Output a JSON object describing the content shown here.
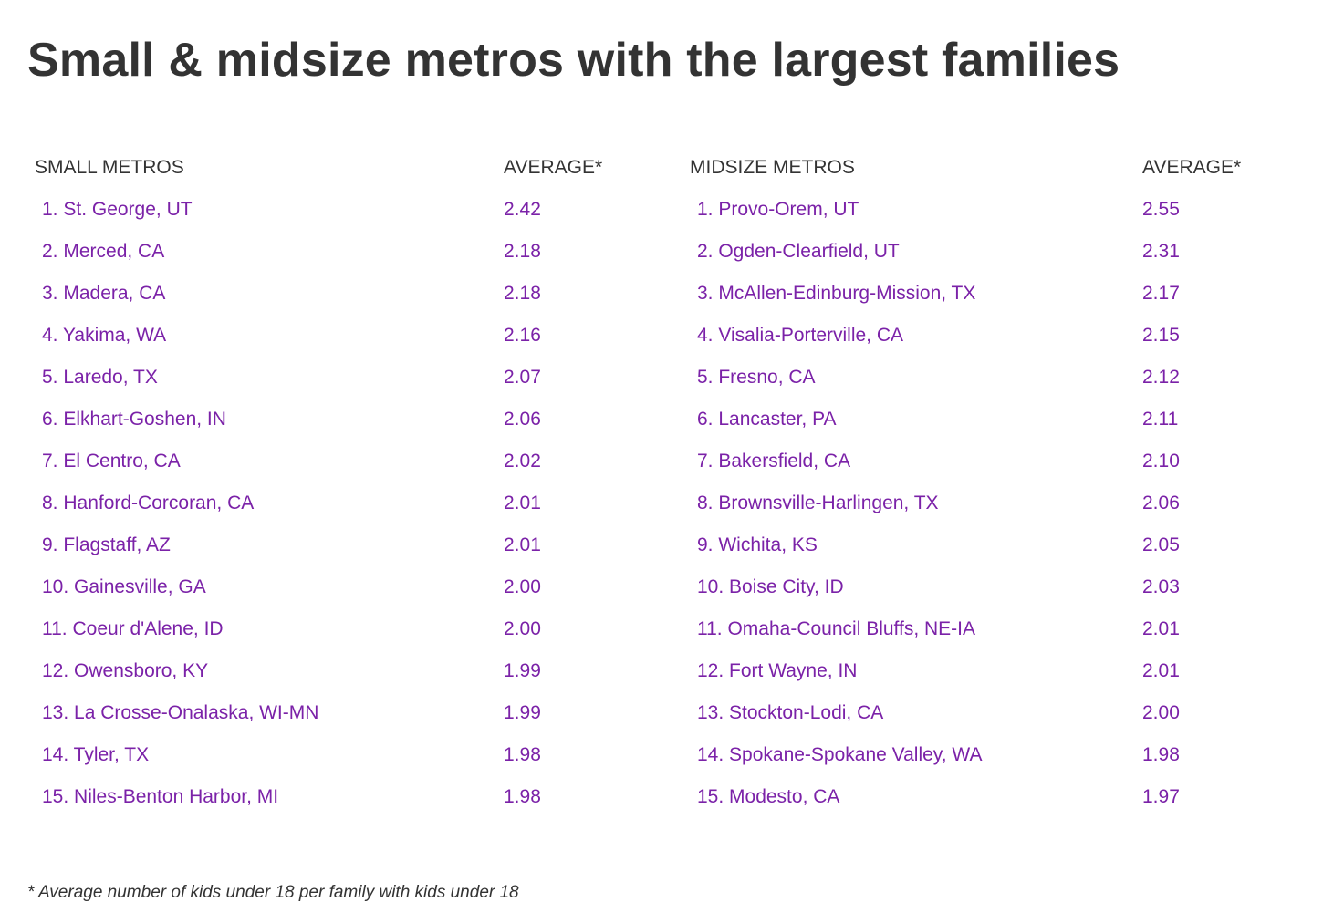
{
  "title": "Small & midsize metros with the largest families",
  "colors": {
    "heading_text": "#333333",
    "row_text": "#7b22a8",
    "background": "#ffffff"
  },
  "small": {
    "header_name": "SMALL METROS",
    "header_avg": "AVERAGE*",
    "rows": [
      {
        "name": "1. St. George, UT",
        "avg": "2.42"
      },
      {
        "name": "2. Merced, CA",
        "avg": "2.18"
      },
      {
        "name": "3. Madera, CA",
        "avg": "2.18"
      },
      {
        "name": "4. Yakima, WA",
        "avg": "2.16"
      },
      {
        "name": "5. Laredo, TX",
        "avg": "2.07"
      },
      {
        "name": "6. Elkhart-Goshen, IN",
        "avg": "2.06"
      },
      {
        "name": "7. El Centro, CA",
        "avg": "2.02"
      },
      {
        "name": "8. Hanford-Corcoran, CA",
        "avg": "2.01"
      },
      {
        "name": "9. Flagstaff, AZ",
        "avg": "2.01"
      },
      {
        "name": "10. Gainesville, GA",
        "avg": "2.00"
      },
      {
        "name": "11. Coeur d'Alene, ID",
        "avg": "2.00"
      },
      {
        "name": "12. Owensboro, KY",
        "avg": "1.99"
      },
      {
        "name": "13. La Crosse-Onalaska, WI-MN",
        "avg": "1.99"
      },
      {
        "name": "14. Tyler, TX",
        "avg": "1.98"
      },
      {
        "name": "15. Niles-Benton Harbor, MI",
        "avg": "1.98"
      }
    ]
  },
  "midsize": {
    "header_name": "MIDSIZE METROS",
    "header_avg": "AVERAGE*",
    "rows": [
      {
        "name": "1. Provo-Orem, UT",
        "avg": "2.55"
      },
      {
        "name": "2. Ogden-Clearfield, UT",
        "avg": "2.31"
      },
      {
        "name": "3. McAllen-Edinburg-Mission, TX",
        "avg": "2.17"
      },
      {
        "name": "4. Visalia-Porterville, CA",
        "avg": "2.15"
      },
      {
        "name": "5. Fresno, CA",
        "avg": "2.12"
      },
      {
        "name": "6. Lancaster, PA",
        "avg": "2.11"
      },
      {
        "name": "7. Bakersfield, CA",
        "avg": "2.10"
      },
      {
        "name": "8. Brownsville-Harlingen, TX",
        "avg": "2.06"
      },
      {
        "name": "9. Wichita, KS",
        "avg": "2.05"
      },
      {
        "name": "10. Boise City, ID",
        "avg": "2.03"
      },
      {
        "name": "11. Omaha-Council Bluffs, NE-IA",
        "avg": "2.01"
      },
      {
        "name": "12. Fort Wayne, IN",
        "avg": "2.01"
      },
      {
        "name": "13. Stockton-Lodi, CA",
        "avg": "2.00"
      },
      {
        "name": "14. Spokane-Spokane Valley, WA",
        "avg": "1.98"
      },
      {
        "name": "15. Modesto, CA",
        "avg": "1.97"
      }
    ]
  },
  "footnote": "* Average number of kids under 18 per family with kids under 18"
}
